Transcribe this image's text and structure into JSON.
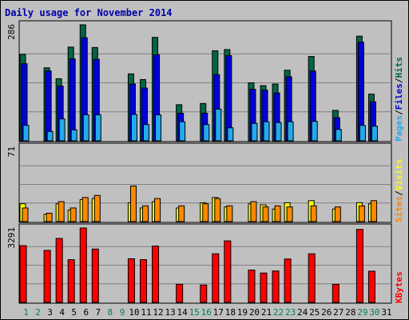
{
  "chart_data": {
    "type": "bar",
    "title": "Daily usage for November 2014",
    "days": [
      "1",
      "2",
      "3",
      "4",
      "5",
      "6",
      "7",
      "8",
      "9",
      "10",
      "11",
      "12",
      "13",
      "14",
      "15",
      "16",
      "17",
      "18",
      "19",
      "20",
      "21",
      "22",
      "23",
      "24",
      "25",
      "26",
      "27",
      "28",
      "29",
      "30",
      "31"
    ],
    "weekend_days": [
      "1",
      "2",
      "8",
      "9",
      "15",
      "16",
      "22",
      "23",
      "29",
      "30"
    ],
    "panels": [
      {
        "id": "top",
        "max_label": "286",
        "ylim": [
          0,
          286
        ],
        "series": [
          {
            "name": "Hits",
            "color": "#006644",
            "values": [
              213,
              0,
              180,
              153,
              231,
              286,
              230,
              0,
              0,
              165,
              151,
              255,
              0,
              89,
              0,
              92,
              222,
              225,
              0,
              143,
              136,
              140,
              174,
              0,
              208,
              0,
              75,
              0,
              258,
              115,
              0
            ]
          },
          {
            "name": "Files",
            "color": "#0000dd",
            "values": [
              190,
              0,
              172,
              135,
              202,
              254,
              201,
              0,
              0,
              140,
              130,
              212,
              0,
              68,
              0,
              68,
              163,
              210,
              0,
              127,
              125,
              118,
              158,
              0,
              172,
              0,
              57,
              0,
              243,
              96,
              0
            ]
          },
          {
            "name": "Pages",
            "color": "#22aaee",
            "values": [
              38,
              0,
              23,
              54,
              27,
              64,
              64,
              0,
              0,
              65,
              40,
              64,
              0,
              47,
              0,
              40,
              78,
              32,
              0,
              43,
              47,
              45,
              47,
              0,
              48,
              0,
              28,
              0,
              38,
              36,
              0
            ]
          }
        ],
        "legend": [
          {
            "text": "Pages",
            "color": "#22aaee"
          },
          {
            "text": "/",
            "color": "#000000"
          },
          {
            "text": "Files",
            "color": "#0000dd"
          },
          {
            "text": "/",
            "color": "#000000"
          },
          {
            "text": "Hits",
            "color": "#006644"
          }
        ]
      },
      {
        "id": "mid",
        "max_label": "71",
        "ylim": [
          0,
          71
        ],
        "series": [
          {
            "name": "Visits",
            "color": "#ffff00",
            "values": [
              17,
              0,
              7,
              17,
              11,
              21,
              22,
              0,
              0,
              18,
              13,
              19,
              0,
              13,
              0,
              18,
              23,
              14,
              0,
              17,
              16,
              12,
              18,
              0,
              20,
              0,
              12,
              0,
              18,
              17,
              0
            ]
          },
          {
            "name": "Sites",
            "color": "#ff8800",
            "values": [
              13,
              0,
              8,
              19,
              13,
              23,
              25,
              0,
              0,
              34,
              15,
              22,
              0,
              15,
              0,
              17,
              22,
              15,
              0,
              19,
              14,
              15,
              14,
              0,
              15,
              0,
              14,
              0,
              15,
              20,
              0
            ]
          }
        ],
        "legend": [
          {
            "text": "Sites",
            "color": "#ff8800"
          },
          {
            "text": "/",
            "color": "#000000"
          },
          {
            "text": "Visits",
            "color": "#ffff00"
          }
        ]
      },
      {
        "id": "bot",
        "max_label": "3291",
        "ylim": [
          0,
          3291
        ],
        "series": [
          {
            "name": "KBytes",
            "color": "#ff0000",
            "values": [
              2510,
              0,
              2300,
              2830,
              1890,
              3291,
              2360,
              0,
              0,
              1930,
              1890,
              2490,
              0,
              800,
              0,
              770,
              2150,
              2720,
              0,
              1430,
              1300,
              1390,
              1920,
              0,
              2150,
              0,
              800,
              0,
              3230,
              1380,
              0
            ]
          }
        ],
        "legend": [
          {
            "text": "KBytes",
            "color": "#ff0000"
          }
        ]
      }
    ]
  }
}
